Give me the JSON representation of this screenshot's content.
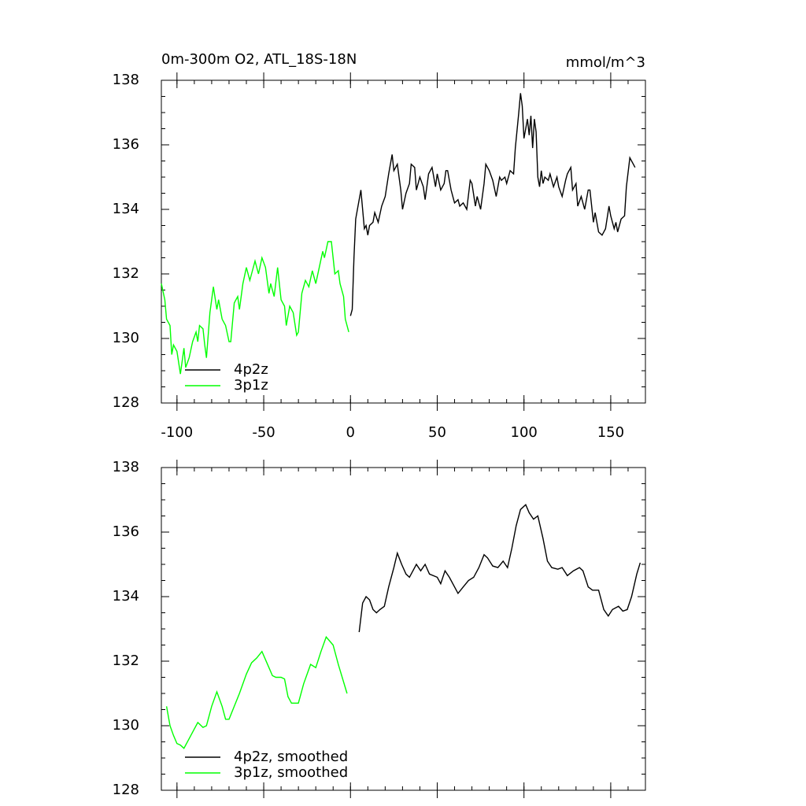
{
  "chart_data": [
    {
      "type": "line",
      "title": "0m-300m O2, ATL_18S-18N",
      "units": "mmol/m^3",
      "xlim": [
        -109,
        170
      ],
      "ylim": [
        128,
        138
      ],
      "xticks": [
        -100,
        -50,
        0,
        50,
        100,
        150
      ],
      "yticks": [
        128,
        130,
        132,
        134,
        136,
        138
      ],
      "xtick_labels": true,
      "legend": "lower left",
      "series": [
        {
          "name": "4p2z",
          "color": "#000000",
          "x": [
            0,
            1,
            2,
            3,
            5,
            6,
            8,
            9,
            10,
            11,
            13,
            14,
            16,
            18,
            20,
            22,
            24,
            25,
            27,
            29,
            30,
            32,
            34,
            35,
            37,
            38,
            40,
            42,
            43,
            45,
            47,
            49,
            50,
            52,
            54,
            55,
            56,
            58,
            60,
            62,
            63,
            65,
            67,
            69,
            70,
            72,
            73,
            75,
            77,
            78,
            80,
            82,
            84,
            86,
            87,
            89,
            90,
            92,
            94,
            95,
            97,
            98,
            99,
            100,
            101,
            102,
            103,
            104,
            105,
            106,
            107,
            108,
            109,
            110,
            111,
            112,
            114,
            115,
            117,
            119,
            120,
            122,
            124,
            125,
            127,
            128,
            130,
            131,
            133,
            135,
            137,
            138,
            140,
            141,
            143,
            145,
            147,
            149,
            150,
            152,
            153,
            154,
            156,
            158,
            159,
            161,
            163,
            164
          ],
          "values": [
            130.7,
            130.9,
            132.5,
            133.7,
            134.3,
            134.6,
            133.4,
            133.5,
            133.2,
            133.5,
            133.6,
            133.9,
            133.6,
            134.1,
            134.4,
            135.1,
            135.7,
            135.2,
            135.4,
            134.6,
            134.0,
            134.5,
            134.8,
            135.4,
            135.3,
            134.6,
            135.0,
            134.7,
            134.3,
            135.1,
            135.3,
            134.7,
            135.1,
            134.6,
            134.8,
            135.2,
            135.2,
            134.6,
            134.2,
            134.3,
            134.1,
            134.2,
            134.0,
            134.9,
            134.8,
            134.1,
            134.4,
            134.0,
            134.8,
            135.4,
            135.2,
            134.9,
            134.4,
            135.0,
            134.9,
            135.0,
            134.8,
            135.2,
            135.1,
            135.9,
            137.0,
            137.6,
            137.2,
            136.2,
            136.5,
            136.8,
            136.3,
            136.9,
            135.9,
            136.8,
            136.4,
            135.0,
            134.7,
            135.2,
            134.8,
            135.0,
            134.9,
            135.1,
            134.7,
            135.0,
            134.7,
            134.4,
            134.9,
            135.1,
            135.3,
            134.6,
            134.8,
            134.1,
            134.4,
            134.0,
            134.6,
            134.6,
            133.6,
            133.9,
            133.3,
            133.2,
            133.4,
            134.1,
            133.8,
            133.4,
            133.6,
            133.3,
            133.7,
            133.8,
            134.7,
            135.6,
            135.4,
            135.3
          ]
        },
        {
          "name": "3p1z",
          "color": "#00ff00",
          "x": [
            -109,
            -107,
            -106,
            -104,
            -103,
            -102,
            -100,
            -98,
            -96,
            -95,
            -93,
            -91,
            -89,
            -88,
            -87,
            -85,
            -84,
            -83,
            -81,
            -79,
            -77,
            -76,
            -74,
            -72,
            -70,
            -69,
            -67,
            -65,
            -64,
            -62,
            -60,
            -58,
            -57,
            -55,
            -53,
            -51,
            -49,
            -47,
            -46,
            -44,
            -42,
            -40,
            -38,
            -37,
            -35,
            -33,
            -31,
            -30,
            -28,
            -26,
            -24,
            -22,
            -20,
            -18,
            -16,
            -15,
            -13,
            -11,
            -9,
            -7,
            -6,
            -4,
            -3,
            -1
          ],
          "values": [
            131.7,
            131.2,
            130.6,
            130.4,
            129.5,
            129.8,
            129.6,
            128.9,
            129.7,
            129.1,
            129.4,
            129.9,
            130.2,
            129.9,
            130.4,
            130.3,
            129.8,
            129.4,
            130.8,
            131.6,
            130.9,
            131.2,
            130.6,
            130.4,
            129.9,
            129.9,
            131.1,
            131.3,
            130.9,
            131.7,
            132.2,
            131.8,
            132.0,
            132.4,
            132.0,
            132.5,
            132.2,
            131.4,
            131.7,
            131.3,
            132.2,
            131.2,
            131.0,
            130.4,
            131.0,
            130.8,
            130.1,
            130.2,
            131.4,
            131.8,
            131.6,
            132.1,
            131.7,
            132.2,
            132.7,
            132.5,
            133.0,
            133.0,
            132.0,
            132.1,
            131.7,
            131.3,
            130.6,
            130.2
          ]
        }
      ]
    },
    {
      "type": "line",
      "xlim": [
        -109,
        170
      ],
      "ylim": [
        128,
        138
      ],
      "xticks": [
        -100,
        -50,
        0,
        50,
        100,
        150
      ],
      "yticks": [
        128,
        130,
        132,
        134,
        136,
        138
      ],
      "xtick_labels": false,
      "legend": "lower left",
      "series": [
        {
          "name": "4p2z, smoothed",
          "color": "#000000",
          "x": [
            5,
            7,
            9,
            11,
            13,
            15,
            17,
            19.5,
            22,
            25,
            27,
            29.5,
            32,
            34,
            38,
            40.5,
            43,
            45.5,
            50,
            52,
            54.5,
            57,
            60,
            62,
            65,
            68,
            71,
            74,
            77,
            79,
            82,
            85,
            88,
            90.5,
            93,
            95.5,
            98,
            101,
            103,
            105.5,
            108,
            111,
            113.5,
            116,
            119.5,
            122,
            125,
            128.5,
            132,
            134,
            137,
            139.5,
            143,
            146,
            148.6,
            151,
            154.5,
            157,
            159.5,
            162,
            165,
            167
          ],
          "values": [
            132.9,
            133.8,
            134.0,
            133.9,
            133.6,
            133.5,
            133.6,
            133.7,
            134.3,
            134.9,
            135.35,
            135.0,
            134.7,
            134.6,
            135.0,
            134.8,
            135.0,
            134.7,
            134.6,
            134.4,
            134.8,
            134.6,
            134.3,
            134.1,
            134.3,
            134.5,
            134.6,
            134.9,
            135.3,
            135.2,
            134.95,
            134.9,
            135.1,
            134.9,
            135.5,
            136.2,
            136.7,
            136.85,
            136.6,
            136.4,
            136.5,
            135.8,
            135.1,
            134.9,
            134.85,
            134.9,
            134.65,
            134.8,
            134.9,
            134.8,
            134.3,
            134.2,
            134.2,
            133.6,
            133.4,
            133.6,
            133.7,
            133.55,
            133.6,
            134.0,
            134.7,
            135.05
          ]
        },
        {
          "name": "3p1z, smoothed",
          "color": "#00ff00",
          "x": [
            -106,
            -104,
            -102,
            -100,
            -98,
            -96,
            -93,
            -90,
            -88,
            -85,
            -83,
            -80,
            -77,
            -74,
            -72,
            -70,
            -67,
            -64,
            -60,
            -57,
            -54,
            -51,
            -47,
            -45,
            -43,
            -40,
            -38,
            -36,
            -34,
            -30,
            -27,
            -23,
            -20,
            -17,
            -14,
            -10,
            -7,
            -2
          ],
          "values": [
            130.6,
            130.0,
            129.7,
            129.45,
            129.4,
            129.3,
            129.6,
            129.9,
            130.1,
            129.95,
            130.0,
            130.6,
            131.05,
            130.6,
            130.2,
            130.2,
            130.6,
            131.0,
            131.6,
            131.95,
            132.1,
            132.3,
            131.8,
            131.55,
            131.5,
            131.5,
            131.45,
            130.9,
            130.7,
            130.7,
            131.3,
            131.9,
            131.8,
            132.3,
            132.75,
            132.5,
            131.9,
            131.0
          ]
        }
      ]
    }
  ]
}
